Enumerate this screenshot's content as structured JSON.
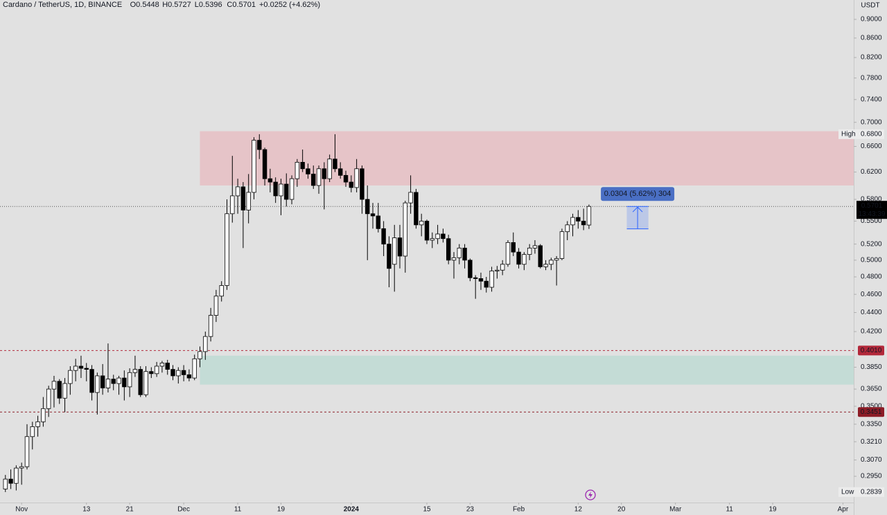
{
  "chart_data": {
    "type": "candlestick",
    "title": "Cardano / TetherUS, 1D, BINANCE",
    "legend_values": [
      "O0.5448",
      "H0.5727",
      "L0.5396",
      "C0.5701",
      "+0.0252 (+4.62%)"
    ],
    "y_axis_unit": "USDT",
    "log_scale": true,
    "grid": false,
    "up_color": "#ffffff",
    "down_color": "#000000",
    "wick_color": "#000000",
    "x": [
      "2023-10-29",
      "2023-10-30",
      "2023-10-31",
      "2023-11-01",
      "2023-11-02",
      "2023-11-03",
      "2023-11-04",
      "2023-11-05",
      "2023-11-06",
      "2023-11-07",
      "2023-11-08",
      "2023-11-09",
      "2023-11-10",
      "2023-11-11",
      "2023-11-12",
      "2023-11-13",
      "2023-11-14",
      "2023-11-15",
      "2023-11-16",
      "2023-11-17",
      "2023-11-18",
      "2023-11-19",
      "2023-11-20",
      "2023-11-21",
      "2023-11-22",
      "2023-11-23",
      "2023-11-24",
      "2023-11-25",
      "2023-11-26",
      "2023-11-27",
      "2023-11-28",
      "2023-11-29",
      "2023-11-30",
      "2023-12-01",
      "2023-12-02",
      "2023-12-03",
      "2023-12-04",
      "2023-12-05",
      "2023-12-06",
      "2023-12-07",
      "2023-12-08",
      "2023-12-09",
      "2023-12-10",
      "2023-12-11",
      "2023-12-12",
      "2023-12-13",
      "2023-12-14",
      "2023-12-15",
      "2023-12-16",
      "2023-12-17",
      "2023-12-18",
      "2023-12-19",
      "2023-12-20",
      "2023-12-21",
      "2023-12-22",
      "2023-12-23",
      "2023-12-24",
      "2023-12-25",
      "2023-12-26",
      "2023-12-27",
      "2023-12-28",
      "2023-12-29",
      "2023-12-30",
      "2023-12-31",
      "2024-01-01",
      "2024-01-02",
      "2024-01-03",
      "2024-01-04",
      "2024-01-05",
      "2024-01-06",
      "2024-01-07",
      "2024-01-08",
      "2024-01-09",
      "2024-01-10",
      "2024-01-11",
      "2024-01-12",
      "2024-01-13",
      "2024-01-14",
      "2024-01-15",
      "2024-01-16",
      "2024-01-17",
      "2024-01-18",
      "2024-01-19",
      "2024-01-20",
      "2024-01-21",
      "2024-01-22",
      "2024-01-23",
      "2024-01-24",
      "2024-01-25",
      "2024-01-26",
      "2024-01-27",
      "2024-01-28",
      "2024-01-29",
      "2024-01-30",
      "2024-01-31",
      "2024-02-01",
      "2024-02-02",
      "2024-02-03",
      "2024-02-04",
      "2024-02-05",
      "2024-02-06",
      "2024-02-07",
      "2024-02-08",
      "2024-02-09",
      "2024-02-10",
      "2024-02-11",
      "2024-02-12",
      "2024-02-13",
      "2024-02-14"
    ],
    "open": [
      0.286,
      0.293,
      0.29,
      0.301,
      0.302,
      0.325,
      0.333,
      0.337,
      0.348,
      0.365,
      0.372,
      0.357,
      0.37,
      0.382,
      0.386,
      0.384,
      0.383,
      0.362,
      0.377,
      0.366,
      0.374,
      0.37,
      0.375,
      0.367,
      0.38,
      0.383,
      0.36,
      0.381,
      0.379,
      0.386,
      0.389,
      0.383,
      0.377,
      0.382,
      0.378,
      0.375,
      0.393,
      0.4,
      0.415,
      0.437,
      0.458,
      0.47,
      0.56,
      0.585,
      0.598,
      0.565,
      0.59,
      0.67,
      0.655,
      0.61,
      0.605,
      0.585,
      0.602,
      0.58,
      0.61,
      0.635,
      0.625,
      0.617,
      0.6,
      0.625,
      0.61,
      0.64,
      0.625,
      0.615,
      0.605,
      0.597,
      0.625,
      0.58,
      0.56,
      0.557,
      0.54,
      0.52,
      0.495,
      0.528,
      0.505,
      0.575,
      0.59,
      0.545,
      0.55,
      0.525,
      0.527,
      0.533,
      0.527,
      0.5,
      0.503,
      0.515,
      0.5,
      0.479,
      0.478,
      0.475,
      0.468,
      0.487,
      0.488,
      0.495,
      0.522,
      0.51,
      0.495,
      0.507,
      0.515,
      0.518,
      0.492,
      0.495,
      0.5,
      0.502,
      0.536,
      0.545,
      0.555,
      0.55,
      0.5448
    ],
    "high": [
      0.296,
      0.3,
      0.303,
      0.305,
      0.335,
      0.337,
      0.342,
      0.358,
      0.368,
      0.377,
      0.374,
      0.375,
      0.386,
      0.393,
      0.396,
      0.389,
      0.387,
      0.38,
      0.388,
      0.408,
      0.378,
      0.377,
      0.382,
      0.384,
      0.396,
      0.386,
      0.386,
      0.385,
      0.39,
      0.391,
      0.392,
      0.387,
      0.385,
      0.387,
      0.383,
      0.397,
      0.405,
      0.42,
      0.445,
      0.465,
      0.475,
      0.58,
      0.645,
      0.61,
      0.605,
      0.617,
      0.675,
      0.68,
      0.658,
      0.625,
      0.612,
      0.61,
      0.618,
      0.615,
      0.64,
      0.655,
      0.633,
      0.63,
      0.63,
      0.635,
      0.647,
      0.68,
      0.635,
      0.622,
      0.615,
      0.64,
      0.63,
      0.6,
      0.575,
      0.575,
      0.55,
      0.53,
      0.545,
      0.545,
      0.578,
      0.615,
      0.595,
      0.56,
      0.552,
      0.535,
      0.545,
      0.54,
      0.532,
      0.51,
      0.52,
      0.52,
      0.502,
      0.482,
      0.485,
      0.48,
      0.492,
      0.493,
      0.5,
      0.525,
      0.535,
      0.515,
      0.51,
      0.52,
      0.525,
      0.52,
      0.5,
      0.503,
      0.505,
      0.54,
      0.55,
      0.56,
      0.565,
      0.567,
      0.5727
    ],
    "low": [
      0.2839,
      0.286,
      0.285,
      0.289,
      0.3,
      0.315,
      0.325,
      0.333,
      0.341,
      0.349,
      0.352,
      0.345,
      0.36,
      0.372,
      0.375,
      0.372,
      0.355,
      0.343,
      0.36,
      0.362,
      0.364,
      0.36,
      0.355,
      0.358,
      0.376,
      0.358,
      0.358,
      0.375,
      0.376,
      0.38,
      0.378,
      0.373,
      0.37,
      0.372,
      0.372,
      0.373,
      0.385,
      0.392,
      0.41,
      0.43,
      0.452,
      0.465,
      0.548,
      0.56,
      0.515,
      0.547,
      0.58,
      0.64,
      0.6,
      0.59,
      0.575,
      0.558,
      0.57,
      0.573,
      0.598,
      0.62,
      0.61,
      0.595,
      0.588,
      0.566,
      0.605,
      0.62,
      0.61,
      0.598,
      0.59,
      0.59,
      0.56,
      0.5,
      0.54,
      0.535,
      0.505,
      0.468,
      0.463,
      0.49,
      0.485,
      0.56,
      0.54,
      0.53,
      0.52,
      0.515,
      0.52,
      0.522,
      0.495,
      0.478,
      0.495,
      0.49,
      0.475,
      0.455,
      0.465,
      0.462,
      0.463,
      0.478,
      0.482,
      0.492,
      0.505,
      0.49,
      0.488,
      0.5,
      0.508,
      0.49,
      0.488,
      0.488,
      0.47,
      0.5,
      0.525,
      0.53,
      0.54,
      0.538,
      0.5396
    ],
    "close": [
      0.293,
      0.29,
      0.301,
      0.302,
      0.325,
      0.333,
      0.337,
      0.348,
      0.365,
      0.372,
      0.357,
      0.37,
      0.382,
      0.386,
      0.384,
      0.383,
      0.362,
      0.377,
      0.366,
      0.374,
      0.37,
      0.375,
      0.367,
      0.38,
      0.383,
      0.36,
      0.381,
      0.379,
      0.386,
      0.389,
      0.383,
      0.377,
      0.382,
      0.378,
      0.375,
      0.393,
      0.4,
      0.415,
      0.437,
      0.458,
      0.47,
      0.56,
      0.585,
      0.598,
      0.565,
      0.59,
      0.67,
      0.655,
      0.61,
      0.605,
      0.585,
      0.602,
      0.58,
      0.61,
      0.635,
      0.625,
      0.617,
      0.6,
      0.625,
      0.61,
      0.64,
      0.625,
      0.615,
      0.605,
      0.597,
      0.625,
      0.58,
      0.56,
      0.557,
      0.54,
      0.52,
      0.49,
      0.528,
      0.505,
      0.575,
      0.59,
      0.545,
      0.55,
      0.525,
      0.527,
      0.533,
      0.527,
      0.5,
      0.503,
      0.515,
      0.5,
      0.479,
      0.478,
      0.475,
      0.468,
      0.487,
      0.488,
      0.495,
      0.522,
      0.51,
      0.495,
      0.507,
      0.515,
      0.518,
      0.492,
      0.495,
      0.5,
      0.502,
      0.536,
      0.545,
      0.555,
      0.55,
      0.545,
      0.5701
    ],
    "xlim": [
      "2023-10-28",
      "2024-04-03"
    ],
    "xticks": [
      {
        "value": "2023-11-01",
        "label": "Nov"
      },
      {
        "value": "2023-11-13",
        "label": "13"
      },
      {
        "value": "2023-11-21",
        "label": "21"
      },
      {
        "value": "2023-12-01",
        "label": "Dec"
      },
      {
        "value": "2023-12-11",
        "label": "11"
      },
      {
        "value": "2023-12-19",
        "label": "19"
      },
      {
        "value": "2024-01-01",
        "label": "2024"
      },
      {
        "value": "2024-01-15",
        "label": "15"
      },
      {
        "value": "2024-01-23",
        "label": "23"
      },
      {
        "value": "2024-02-01",
        "label": "Feb"
      },
      {
        "value": "2024-02-12",
        "label": "12"
      },
      {
        "value": "2024-02-20",
        "label": "20"
      },
      {
        "value": "2024-03-01",
        "label": "Mar"
      },
      {
        "value": "2024-03-11",
        "label": "11"
      },
      {
        "value": "2024-03-19",
        "label": "19"
      },
      {
        "value": "2024-04-01",
        "label": "Apr"
      }
    ],
    "ylim": [
      0.2767,
      0.9436
    ],
    "yticks": [
      {
        "value": 0.9,
        "label": "0.9000"
      },
      {
        "value": 0.86,
        "label": "0.8600"
      },
      {
        "value": 0.82,
        "label": "0.8200"
      },
      {
        "value": 0.78,
        "label": "0.7800"
      },
      {
        "value": 0.74,
        "label": "0.7400"
      },
      {
        "value": 0.7,
        "label": "0.7000"
      },
      {
        "value": 0.66,
        "label": "0.6600"
      },
      {
        "value": 0.62,
        "label": "0.6200"
      },
      {
        "value": 0.58,
        "label": "0.5800"
      },
      {
        "value": 0.55,
        "label": "0.5500"
      },
      {
        "value": 0.52,
        "label": "0.5200"
      },
      {
        "value": 0.5,
        "label": "0.5000"
      },
      {
        "value": 0.48,
        "label": "0.4800"
      },
      {
        "value": 0.46,
        "label": "0.4600"
      },
      {
        "value": 0.44,
        "label": "0.4400"
      },
      {
        "value": 0.42,
        "label": "0.4200"
      },
      {
        "value": 0.385,
        "label": "0.3850"
      },
      {
        "value": 0.365,
        "label": "0.3650"
      },
      {
        "value": 0.35,
        "label": "0.3500"
      },
      {
        "value": 0.335,
        "label": "0.3350"
      },
      {
        "value": 0.321,
        "label": "0.3210"
      },
      {
        "value": 0.307,
        "label": "0.3070"
      },
      {
        "value": 0.295,
        "label": "0.2950"
      }
    ],
    "zones": [
      {
        "from": "2023-12-04",
        "top": 0.685,
        "bottom": 0.6,
        "color": "#e6c4c8"
      },
      {
        "from": "2023-12-04",
        "top": 0.396,
        "bottom": 0.369,
        "color": "#c4dcd6"
      }
    ],
    "levels": [
      {
        "value": 0.401,
        "label": "0.4010",
        "color": "#b2283a"
      },
      {
        "value": 0.3451,
        "label": "0.3451",
        "color": "#8c1c26"
      }
    ],
    "extremes": [
      {
        "name": "High",
        "value": 0.68,
        "label": "0.6800"
      },
      {
        "name": "Low",
        "value": 0.2839,
        "label": "0.2839"
      }
    ],
    "last_price": {
      "value": 0.5701,
      "label": "0.5701",
      "countdown": "13:43:39"
    },
    "measure": {
      "from": "2024-02-21",
      "to": "2024-02-25",
      "start": 0.5397,
      "end": 0.5701,
      "label": "0.0304 (5.62%) 304",
      "color": "#2962ff"
    }
  }
}
